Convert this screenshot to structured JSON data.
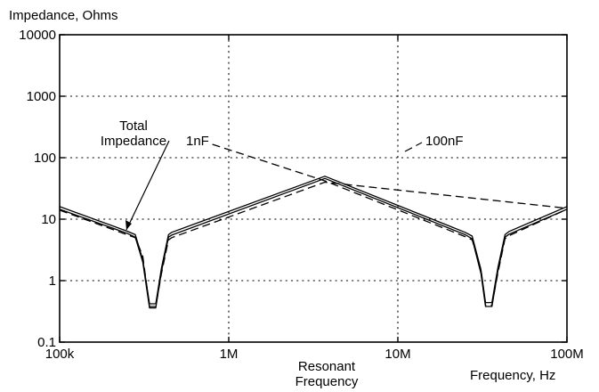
{
  "chart_data": {
    "type": "line",
    "title": "",
    "ylabel": "Impedance, Ohms",
    "xlabel": "Frequency, Hz",
    "x_scale": "log",
    "y_scale": "log",
    "xlim": [
      100000,
      100000000
    ],
    "ylim": [
      0.1,
      10000
    ],
    "grid": true,
    "grid_style": "dotted",
    "x_ticks": [
      {
        "value": 100000,
        "label": "100k"
      },
      {
        "value": 1000000,
        "label": "1M"
      },
      {
        "value": 10000000,
        "label": "10M"
      },
      {
        "value": 100000000,
        "label": "100M"
      }
    ],
    "y_ticks": [
      {
        "value": 0.1,
        "label": "0.1"
      },
      {
        "value": 1,
        "label": "1"
      },
      {
        "value": 10,
        "label": "10"
      },
      {
        "value": 100,
        "label": "100"
      },
      {
        "value": 1000,
        "label": "1000"
      },
      {
        "value": 10000,
        "label": "10000"
      }
    ],
    "series": [
      {
        "name": "Total Impedance",
        "style": "solid",
        "color": "#000000",
        "points": [
          [
            100000,
            16
          ],
          [
            250000,
            6.4
          ],
          [
            280000,
            5.6
          ],
          [
            310000,
            2.2
          ],
          [
            340000,
            0.42
          ],
          [
            370000,
            0.42
          ],
          [
            400000,
            1.6
          ],
          [
            440000,
            5.6
          ],
          [
            460000,
            6.1
          ],
          [
            3700000,
            50
          ],
          [
            25000000,
            6.1
          ],
          [
            27500000,
            5.3
          ],
          [
            31000000,
            1.5
          ],
          [
            33000000,
            0.44
          ],
          [
            36000000,
            0.44
          ],
          [
            39000000,
            1.6
          ],
          [
            43000000,
            5.6
          ],
          [
            45500000,
            6.3
          ],
          [
            100000000,
            16
          ]
        ]
      },
      {
        "name": "Total Impedance",
        "style": "solid",
        "color": "#000000",
        "points": [
          [
            100000,
            14.5
          ],
          [
            250000,
            5.9
          ],
          [
            280000,
            5.1
          ],
          [
            310000,
            2.0
          ],
          [
            340000,
            0.36
          ],
          [
            370000,
            0.36
          ],
          [
            400000,
            1.4
          ],
          [
            440000,
            5.1
          ],
          [
            460000,
            5.5
          ],
          [
            3700000,
            46
          ],
          [
            25000000,
            5.6
          ],
          [
            27500000,
            4.8
          ],
          [
            31000000,
            1.3
          ],
          [
            33000000,
            0.38
          ],
          [
            36000000,
            0.38
          ],
          [
            39000000,
            1.4
          ],
          [
            43000000,
            5.1
          ],
          [
            45500000,
            5.7
          ],
          [
            100000000,
            14.5
          ]
        ]
      },
      {
        "name": "1nF",
        "style": "dashed",
        "color": "#000000",
        "points": [
          [
            100000,
            14
          ],
          [
            250000,
            5.6
          ],
          [
            280000,
            5.0
          ],
          [
            310000,
            2.5
          ],
          [
            340000,
            0.38
          ],
          [
            370000,
            0.38
          ],
          [
            400000,
            1.3
          ],
          [
            440000,
            4.6
          ],
          [
            460000,
            5.0
          ],
          [
            3700000,
            40
          ],
          [
            100000000,
            15
          ]
        ]
      },
      {
        "name": "100nF",
        "style": "dashed",
        "color": "#000000",
        "points": [
          [
            800000,
            165
          ],
          [
            3700000,
            42
          ],
          [
            25000000,
            5.2
          ],
          [
            27500000,
            4.6
          ],
          [
            31000000,
            1.5
          ],
          [
            33000000,
            0.4
          ],
          [
            36000000,
            0.4
          ],
          [
            39000000,
            1.3
          ],
          [
            43000000,
            4.8
          ],
          [
            45500000,
            5.4
          ],
          [
            100000000,
            14.5
          ]
        ]
      }
    ],
    "annotations": [
      {
        "lines": [
          "Total",
          "Impedance"
        ],
        "anchor": "middle"
      },
      {
        "lines": [
          "1nF"
        ],
        "anchor": "start"
      },
      {
        "lines": [
          "100nF"
        ],
        "anchor": "start"
      },
      {
        "lines": [
          "Resonant",
          "Frequency"
        ],
        "anchor": "middle"
      }
    ]
  }
}
